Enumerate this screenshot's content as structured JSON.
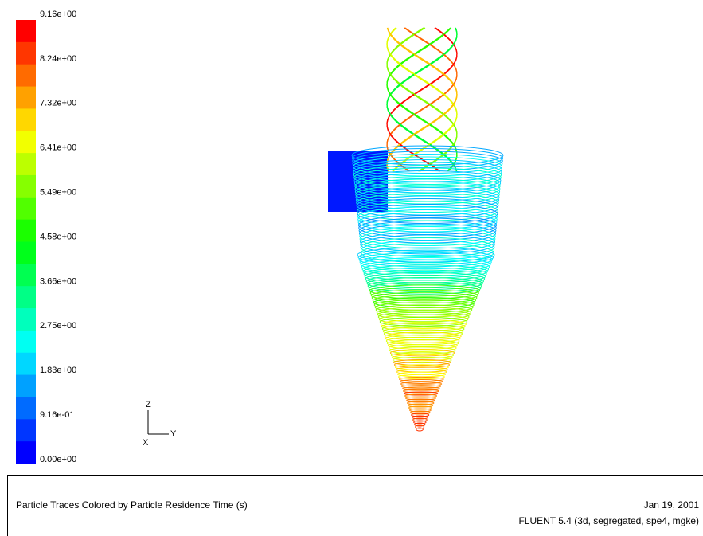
{
  "colorbar": {
    "labels": [
      "9.16e+00",
      "8.24e+00",
      "7.32e+00",
      "6.41e+00",
      "5.49e+00",
      "4.58e+00",
      "3.66e+00",
      "2.75e+00",
      "1.83e+00",
      "9.16e-01",
      "0.00e+00"
    ]
  },
  "axes": {
    "z": "Z",
    "y": "Y",
    "x": "X"
  },
  "footer": {
    "title": "Particle Traces Colored by Particle Residence Time (s)",
    "date": "Jan 19, 2001",
    "version": "FLUENT 5.4 (3d, segregated, spe4, mgke)"
  }
}
